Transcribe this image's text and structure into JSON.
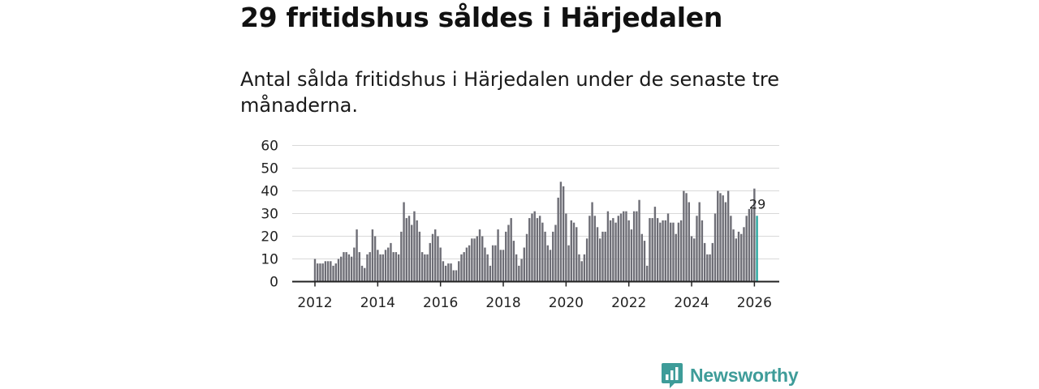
{
  "header": {
    "title": "29 fritidshus såldes i Härjedalen",
    "subtitle": "Antal sålda fritidshus i Härjedalen under de senaste tre månaderna."
  },
  "brand": {
    "name": "Newsworthy",
    "icon": "newsworthy-logo-icon",
    "color": "#3e9c99"
  },
  "colors": {
    "bar": "#6e6e76",
    "highlight": "#2aa7a0",
    "grid": "#d9d9d9",
    "axis": "#222222"
  },
  "chart_data": {
    "type": "bar",
    "title": "29 fritidshus såldes i Härjedalen",
    "subtitle": "Antal sålda fritidshus i Härjedalen under de senaste tre månaderna.",
    "xlabel": "",
    "ylabel": "",
    "ylim": [
      0,
      60
    ],
    "yticks": [
      0,
      10,
      20,
      30,
      40,
      50,
      60
    ],
    "xticks": [
      {
        "label": "2012",
        "x": 2012
      },
      {
        "label": "2014",
        "x": 2014
      },
      {
        "label": "2016",
        "x": 2016
      },
      {
        "label": "2018",
        "x": 2018
      },
      {
        "label": "2020",
        "x": 2020
      },
      {
        "label": "2022",
        "x": 2022
      },
      {
        "label": "2024",
        "x": 2024
      },
      {
        "label": "2026",
        "x": 2026
      }
    ],
    "x_start": 2012.0,
    "x_step_years": 0.08333,
    "grid": true,
    "highlight_last": true,
    "last_label": "29",
    "values": [
      10,
      8,
      8,
      8,
      9,
      9,
      9,
      7,
      8,
      10,
      11,
      13,
      13,
      12,
      11,
      15,
      23,
      13,
      7,
      6,
      12,
      13,
      23,
      20,
      14,
      12,
      12,
      14,
      15,
      17,
      13,
      13,
      12,
      22,
      35,
      28,
      29,
      25,
      31,
      27,
      22,
      13,
      12,
      12,
      17,
      21,
      23,
      20,
      15,
      9,
      7,
      8,
      8,
      5,
      5,
      9,
      12,
      13,
      15,
      16,
      19,
      19,
      20,
      23,
      20,
      15,
      12,
      7,
      16,
      16,
      23,
      14,
      14,
      22,
      25,
      28,
      18,
      12,
      7,
      10,
      15,
      21,
      28,
      30,
      31,
      28,
      29,
      26,
      22,
      16,
      14,
      22,
      25,
      37,
      44,
      42,
      30,
      16,
      27,
      26,
      24,
      12,
      9,
      12,
      19,
      29,
      35,
      29,
      24,
      19,
      22,
      22,
      31,
      27,
      28,
      26,
      29,
      30,
      31,
      31,
      27,
      23,
      31,
      31,
      36,
      21,
      18,
      7,
      28,
      28,
      33,
      28,
      26,
      27,
      27,
      30,
      26,
      26,
      21,
      26,
      27,
      40,
      39,
      35,
      20,
      19,
      29,
      35,
      27,
      17,
      12,
      12,
      17,
      30,
      40,
      39,
      38,
      35,
      40,
      29,
      23,
      19,
      22,
      21,
      24,
      29,
      32,
      32,
      41,
      29
    ]
  }
}
